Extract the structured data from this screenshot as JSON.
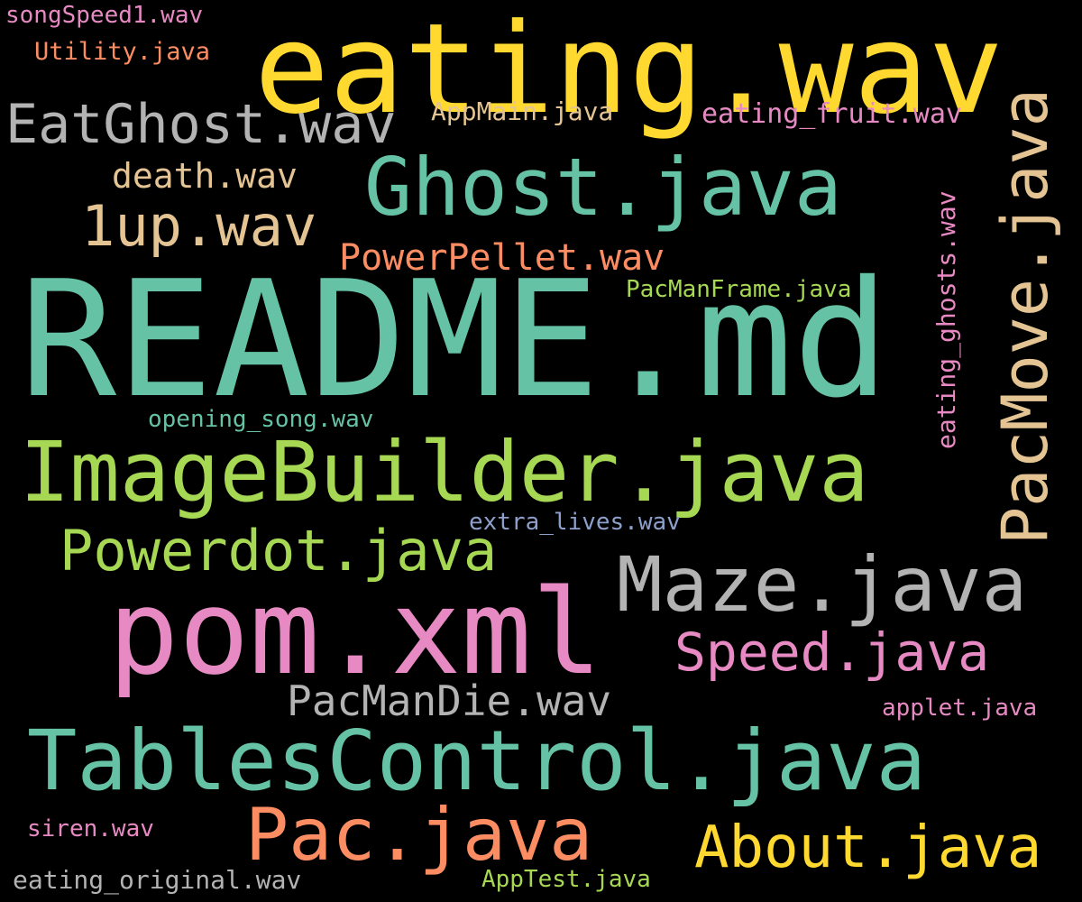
{
  "palette": {
    "background": "#000000",
    "teal": "#66c2a5",
    "yellow": "#ffd92f",
    "pink": "#e78ac3",
    "lime": "#a6d854",
    "orange": "#fc8d62",
    "gray": "#b3b3b3",
    "tan": "#e5c494",
    "blue": "#8da0cb"
  },
  "words": [
    {
      "text": "eating.wav",
      "color": "#ffd92f",
      "rotated": false
    },
    {
      "text": "README.md",
      "color": "#66c2a5",
      "rotated": false
    },
    {
      "text": "ImageBuilder.java",
      "color": "#a6d854",
      "rotated": false
    },
    {
      "text": "pom.xml",
      "color": "#e78ac3",
      "rotated": false
    },
    {
      "text": "TablesControl.java",
      "color": "#66c2a5",
      "rotated": false
    },
    {
      "text": "Ghost.java",
      "color": "#66c2a5",
      "rotated": false
    },
    {
      "text": "Maze.java",
      "color": "#b3b3b3",
      "rotated": false
    },
    {
      "text": "PacMove.java",
      "color": "#e5c494",
      "rotated": true
    },
    {
      "text": "EatGhost.wav",
      "color": "#b3b3b3",
      "rotated": false
    },
    {
      "text": "Pac.java",
      "color": "#fc8d62",
      "rotated": false
    },
    {
      "text": "Powerdot.java",
      "color": "#a6d854",
      "rotated": false
    },
    {
      "text": "About.java",
      "color": "#ffd92f",
      "rotated": false
    },
    {
      "text": "Speed.java",
      "color": "#e78ac3",
      "rotated": false
    },
    {
      "text": "1up.wav",
      "color": "#e5c494",
      "rotated": false
    },
    {
      "text": "PacManDie.wav",
      "color": "#b3b3b3",
      "rotated": false
    },
    {
      "text": "PowerPellet.wav",
      "color": "#fc8d62",
      "rotated": false
    },
    {
      "text": "death.wav",
      "color": "#e5c494",
      "rotated": false
    },
    {
      "text": "eating_fruit.wav",
      "color": "#e78ac3",
      "rotated": false
    },
    {
      "text": "eating_ghosts.wav",
      "color": "#e78ac3",
      "rotated": true
    },
    {
      "text": "AppMain.java",
      "color": "#e5c494",
      "rotated": false
    },
    {
      "text": "PacManFrame.java",
      "color": "#a6d854",
      "rotated": false
    },
    {
      "text": "opening_song.wav",
      "color": "#66c2a5",
      "rotated": false
    },
    {
      "text": "extra_lives.wav",
      "color": "#8da0cb",
      "rotated": false
    },
    {
      "text": "applet.java",
      "color": "#e78ac3",
      "rotated": false
    },
    {
      "text": "eating_original.wav",
      "color": "#b3b3b3",
      "rotated": false
    },
    {
      "text": "AppTest.java",
      "color": "#a6d854",
      "rotated": false
    },
    {
      "text": "siren.wav",
      "color": "#e78ac3",
      "rotated": false
    },
    {
      "text": "songSpeed1.wav",
      "color": "#e78ac3",
      "rotated": false
    },
    {
      "text": "Utility.java",
      "color": "#fc8d62",
      "rotated": false
    }
  ]
}
